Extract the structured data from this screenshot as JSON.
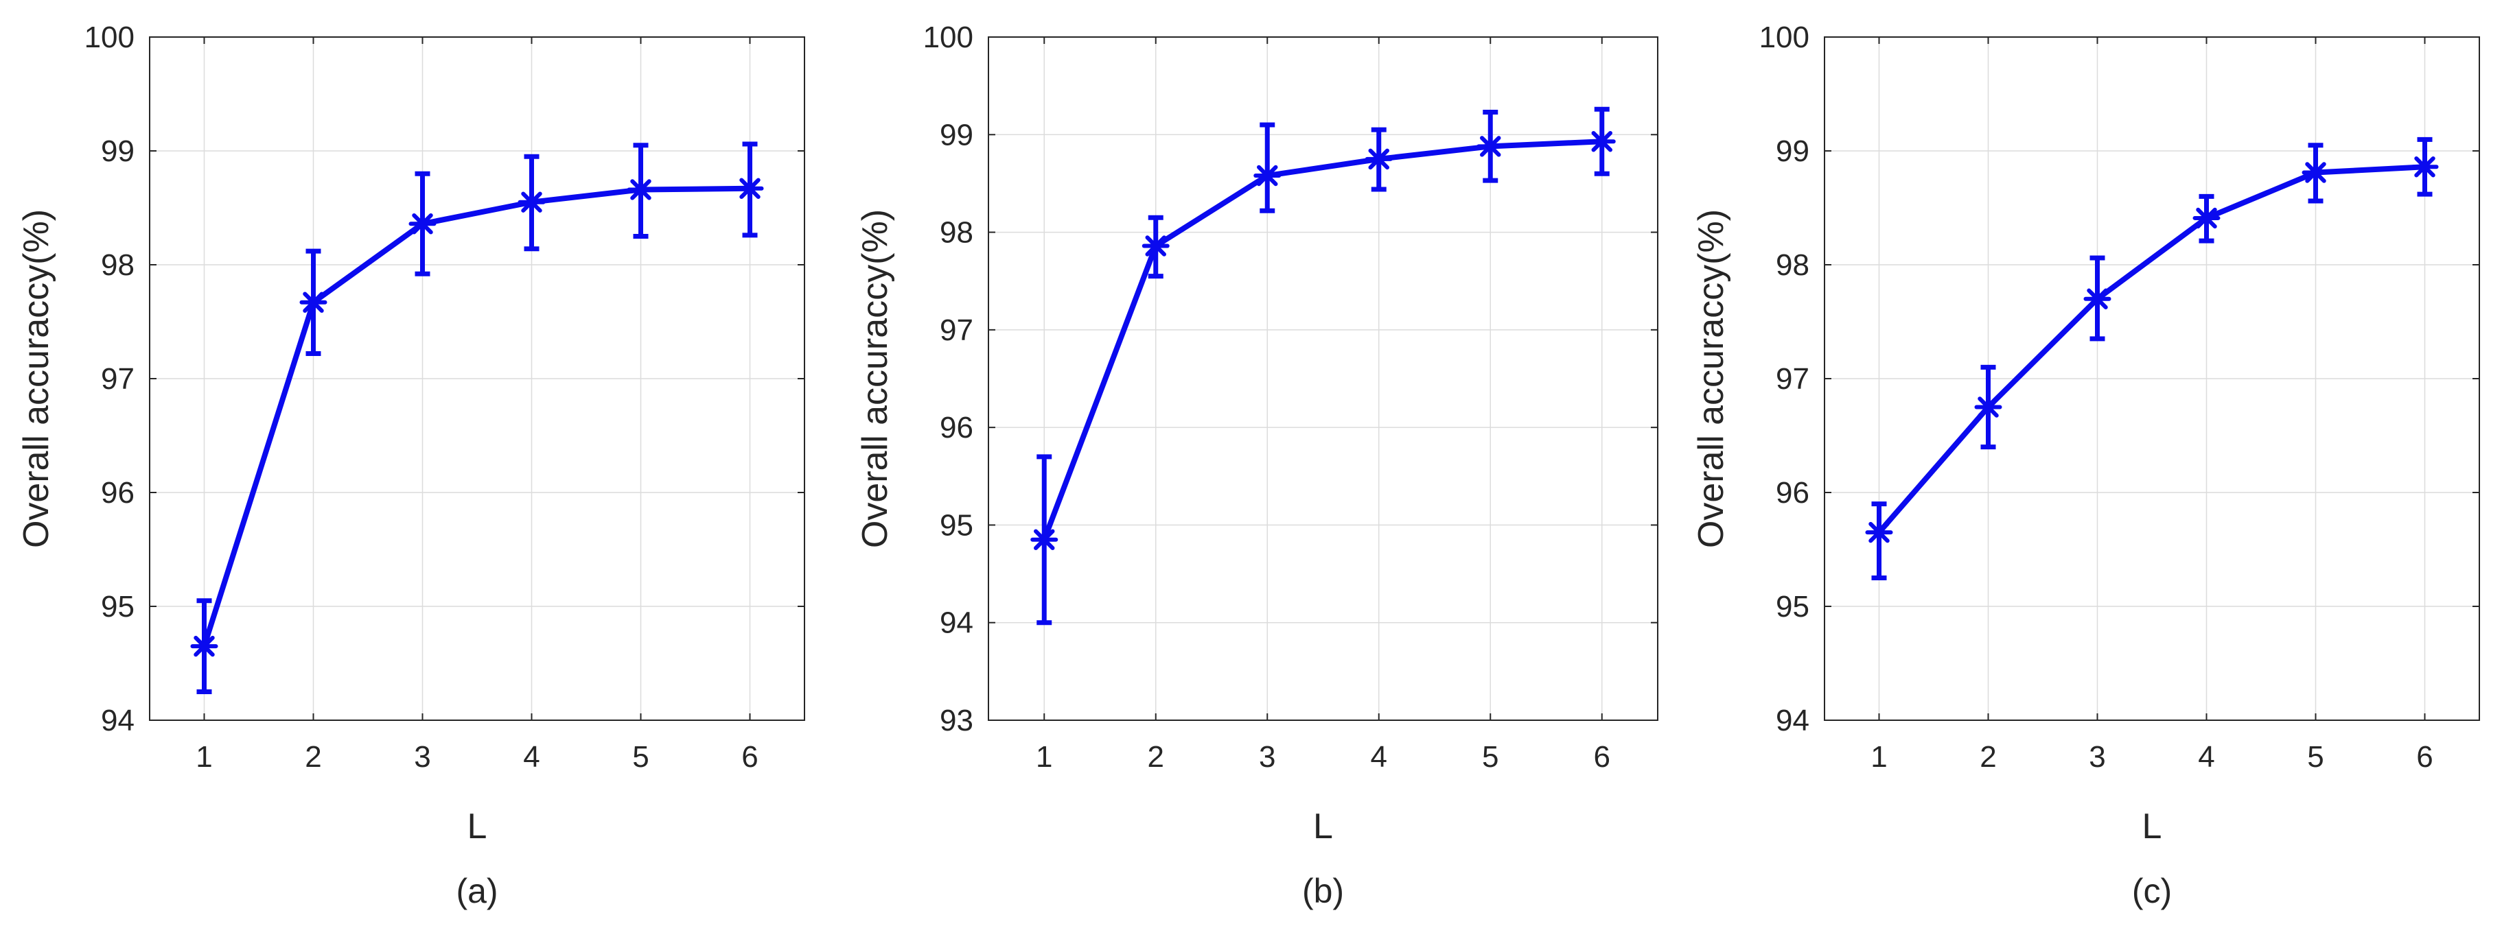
{
  "colors": {
    "series": "#0a0aee",
    "axis": "#262626",
    "grid": "#dcdcdc"
  },
  "chart_data": [
    {
      "type": "line",
      "caption": "(a)",
      "xlabel": "L",
      "ylabel": "Overall accuraccy(%)",
      "x": [
        1,
        2,
        3,
        4,
        5,
        6
      ],
      "xlim": [
        0.5,
        6.5
      ],
      "ylim": [
        94,
        100
      ],
      "xticks": [
        "1",
        "2",
        "3",
        "4",
        "5",
        "6"
      ],
      "yticks": [
        "94",
        "95",
        "96",
        "97",
        "98",
        "99",
        "100"
      ],
      "grid": true,
      "series": [
        {
          "name": "accuracy",
          "values": [
            94.65,
            97.67,
            98.36,
            98.55,
            98.66,
            98.67
          ],
          "err_low": [
            94.25,
            97.22,
            97.92,
            98.14,
            98.25,
            98.26
          ],
          "err_high": [
            95.05,
            98.12,
            98.8,
            98.95,
            99.05,
            99.06
          ]
        }
      ]
    },
    {
      "type": "line",
      "caption": "(b)",
      "xlabel": "L",
      "ylabel": "Overall accuraccy(%)",
      "x": [
        1,
        2,
        3,
        4,
        5,
        6
      ],
      "xlim": [
        0.5,
        6.5
      ],
      "ylim": [
        93,
        100
      ],
      "xticks": [
        "1",
        "2",
        "3",
        "4",
        "5",
        "6"
      ],
      "yticks": [
        "93",
        "94",
        "95",
        "96",
        "97",
        "98",
        "99",
        "100"
      ],
      "grid": true,
      "series": [
        {
          "name": "accuracy",
          "values": [
            94.85,
            97.86,
            98.58,
            98.75,
            98.88,
            98.93
          ],
          "err_low": [
            94.0,
            97.55,
            98.22,
            98.44,
            98.53,
            98.6
          ],
          "err_high": [
            95.7,
            98.15,
            99.1,
            99.05,
            99.23,
            99.26
          ]
        }
      ]
    },
    {
      "type": "line",
      "caption": "(c)",
      "xlabel": "L",
      "ylabel": "Overall accuraccy(%)",
      "x": [
        1,
        2,
        3,
        4,
        5,
        6
      ],
      "xlim": [
        0.5,
        6.5
      ],
      "ylim": [
        94,
        100
      ],
      "xticks": [
        "1",
        "2",
        "3",
        "4",
        "5",
        "6"
      ],
      "yticks": [
        "94",
        "95",
        "96",
        "97",
        "98",
        "99",
        "100"
      ],
      "grid": true,
      "series": [
        {
          "name": "accuracy",
          "values": [
            95.65,
            96.75,
            97.7,
            98.41,
            98.81,
            98.86
          ],
          "err_low": [
            95.25,
            96.4,
            97.35,
            98.21,
            98.56,
            98.62
          ],
          "err_high": [
            95.9,
            97.1,
            98.06,
            98.6,
            99.05,
            99.1
          ]
        }
      ]
    }
  ]
}
